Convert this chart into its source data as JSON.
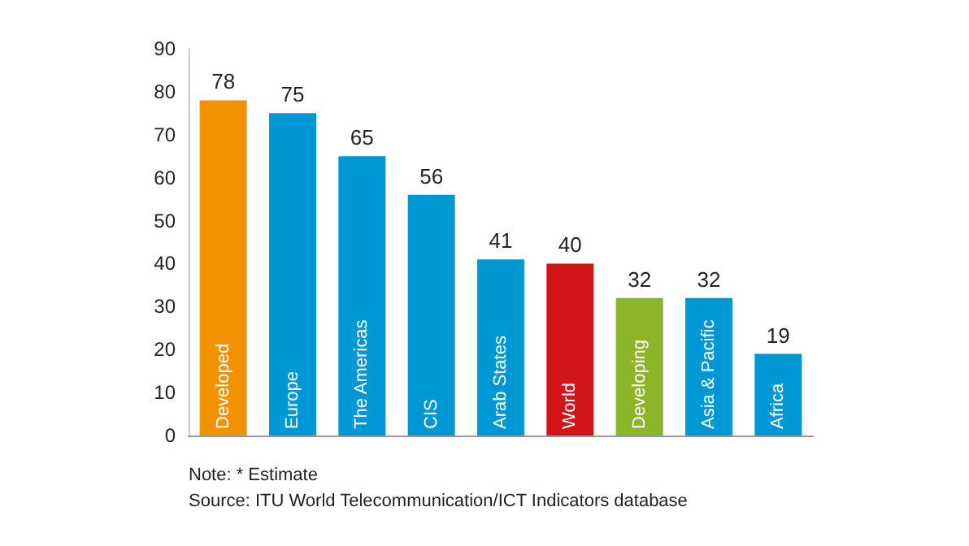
{
  "chart_data": {
    "type": "bar",
    "categories": [
      "Developed",
      "Europe",
      "The Americas",
      "CIS",
      "Arab States",
      "World",
      "Developing",
      "Asia & Pacific",
      "Africa"
    ],
    "values": [
      78,
      75,
      65,
      56,
      41,
      40,
      32,
      32,
      19
    ],
    "colors": [
      "#f39200",
      "#0098d4",
      "#0098d4",
      "#0098d4",
      "#0098d4",
      "#d2151b",
      "#8cb52a",
      "#0098d4",
      "#0098d4"
    ],
    "ylim": [
      0,
      90
    ],
    "yticks": [
      0,
      10,
      20,
      30,
      40,
      50,
      60,
      70,
      80,
      90
    ],
    "grid": false,
    "data_labels": true,
    "annotations": [
      "Note: * Estimate",
      "Source: ITU World Telecommunication/ICT Indicators database"
    ]
  }
}
